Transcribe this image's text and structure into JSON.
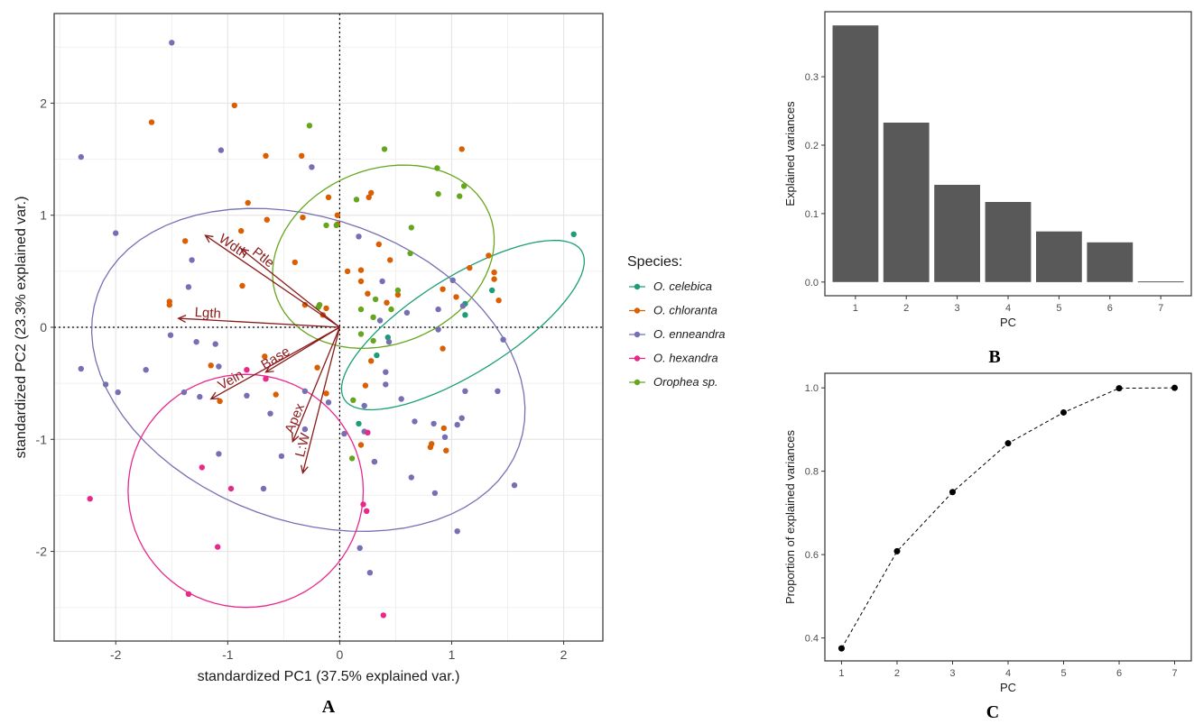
{
  "chart_data": [
    {
      "type": "scatter",
      "panel": "A",
      "xlabel": "standardized PC1 (37.5% explained var.)",
      "ylabel": "standardized PC2 (23.3% explained var.)",
      "xlim": [
        -2.55,
        2.35
      ],
      "ylim": [
        -2.8,
        2.8
      ],
      "xticks": [
        -2,
        -1,
        0,
        1,
        2
      ],
      "yticks": [
        -2,
        -1,
        0,
        1,
        2
      ],
      "grid": true,
      "legend_title": "Species:",
      "legend_position": "right",
      "series": [
        {
          "name": "O. celebica",
          "color": "#1b9e77",
          "points": [
            [
              2.09,
              0.83
            ],
            [
              1.36,
              0.33
            ],
            [
              1.12,
              0.21
            ],
            [
              1.12,
              0.11
            ],
            [
              0.33,
              -0.25
            ],
            [
              0.43,
              -0.09
            ],
            [
              0.17,
              -0.86
            ]
          ],
          "ellipse": {
            "cx": 1.1,
            "cy": 0.02,
            "rx": 1.25,
            "ry": 0.43,
            "angle_deg": 32
          }
        },
        {
          "name": "O. chloranta",
          "color": "#d95f02",
          "points": [
            [
              -1.68,
              1.83
            ],
            [
              -0.94,
              1.98
            ],
            [
              -0.34,
              1.53
            ],
            [
              -0.66,
              1.53
            ],
            [
              -0.1,
              1.16
            ],
            [
              0.26,
              1.16
            ],
            [
              1.09,
              1.59
            ],
            [
              -0.82,
              1.11
            ],
            [
              -0.33,
              0.98
            ],
            [
              -0.02,
              1.0
            ],
            [
              -0.02,
              0.92
            ],
            [
              -0.88,
              0.86
            ],
            [
              -0.65,
              0.96
            ],
            [
              -1.38,
              0.77
            ],
            [
              -0.4,
              0.58
            ],
            [
              0.35,
              0.74
            ],
            [
              0.45,
              0.6
            ],
            [
              0.19,
              0.51
            ],
            [
              0.07,
              0.5
            ],
            [
              1.38,
              0.49
            ],
            [
              0.19,
              0.41
            ],
            [
              1.38,
              0.43
            ],
            [
              1.33,
              0.64
            ],
            [
              1.04,
              0.27
            ],
            [
              0.92,
              0.34
            ],
            [
              0.25,
              0.3
            ],
            [
              0.52,
              0.29
            ],
            [
              0.42,
              0.22
            ],
            [
              1.42,
              0.24
            ],
            [
              -1.52,
              0.23
            ],
            [
              -0.87,
              0.37
            ],
            [
              -0.31,
              0.2
            ],
            [
              -0.15,
              0.11
            ],
            [
              -0.12,
              0.17
            ],
            [
              -0.67,
              -0.26
            ],
            [
              -0.2,
              -0.36
            ],
            [
              -1.15,
              -0.34
            ],
            [
              -0.12,
              -0.59
            ],
            [
              -1.07,
              -0.66
            ],
            [
              -0.57,
              -0.6
            ],
            [
              0.92,
              -0.19
            ],
            [
              0.23,
              -0.52
            ],
            [
              0.28,
              -0.3
            ],
            [
              0.81,
              -1.07
            ],
            [
              0.95,
              -1.1
            ],
            [
              0.93,
              -0.9
            ],
            [
              0.82,
              -1.04
            ],
            [
              0.19,
              -1.05
            ],
            [
              0.31,
              -1.2
            ],
            [
              -1.52,
              0.2
            ],
            [
              1.16,
              0.53
            ],
            [
              0.28,
              1.2
            ]
          ]
        },
        {
          "name": "O. enneandra",
          "color": "#7570b3",
          "points": [
            [
              -1.5,
              2.54
            ],
            [
              -2.31,
              1.52
            ],
            [
              -1.06,
              1.58
            ],
            [
              -0.25,
              1.43
            ],
            [
              -2.0,
              0.84
            ],
            [
              -1.32,
              0.6
            ],
            [
              -1.35,
              0.36
            ],
            [
              -1.51,
              -0.07
            ],
            [
              -1.28,
              -0.13
            ],
            [
              -1.11,
              -0.15
            ],
            [
              -2.31,
              -0.37
            ],
            [
              -1.73,
              -0.38
            ],
            [
              -1.08,
              -0.35
            ],
            [
              -2.09,
              -0.51
            ],
            [
              -1.98,
              -0.58
            ],
            [
              -1.39,
              -0.58
            ],
            [
              -1.25,
              -0.62
            ],
            [
              -0.83,
              -0.61
            ],
            [
              -0.62,
              -0.77
            ],
            [
              -0.31,
              -0.57
            ],
            [
              -0.1,
              -0.67
            ],
            [
              -0.31,
              -0.91
            ],
            [
              -1.08,
              -1.13
            ],
            [
              -0.68,
              -1.44
            ],
            [
              -0.52,
              -1.15
            ],
            [
              0.04,
              -0.95
            ],
            [
              0.22,
              -0.93
            ],
            [
              0.31,
              -1.2
            ],
            [
              0.18,
              -1.97
            ],
            [
              0.27,
              -2.19
            ],
            [
              0.55,
              -0.64
            ],
            [
              0.41,
              -0.51
            ],
            [
              0.22,
              -0.7
            ],
            [
              0.67,
              -0.84
            ],
            [
              0.84,
              -0.86
            ],
            [
              0.94,
              -0.98
            ],
            [
              1.05,
              -0.87
            ],
            [
              1.09,
              -0.81
            ],
            [
              1.12,
              -0.57
            ],
            [
              0.64,
              -1.34
            ],
            [
              0.85,
              -1.48
            ],
            [
              1.05,
              -1.82
            ],
            [
              1.41,
              -0.57
            ],
            [
              1.56,
              -1.41
            ],
            [
              1.46,
              -0.11
            ],
            [
              1.01,
              0.42
            ],
            [
              1.1,
              0.19
            ],
            [
              0.38,
              0.41
            ],
            [
              0.44,
              -0.13
            ],
            [
              0.36,
              0.06
            ],
            [
              0.17,
              0.81
            ],
            [
              0.88,
              0.16
            ],
            [
              0.88,
              -0.02
            ],
            [
              0.6,
              0.13
            ],
            [
              0.41,
              -0.4
            ]
          ],
          "ellipse": {
            "cx": -0.28,
            "cy": -0.38,
            "rx": 2.0,
            "ry": 1.35,
            "angle_deg": -20
          }
        },
        {
          "name": "O. hexandra",
          "color": "#e7298a",
          "points": [
            [
              -2.23,
              -1.53
            ],
            [
              -1.23,
              -1.25
            ],
            [
              -0.83,
              -0.38
            ],
            [
              -0.66,
              -0.46
            ],
            [
              -0.97,
              -1.44
            ],
            [
              -1.09,
              -1.96
            ],
            [
              -1.35,
              -2.38
            ],
            [
              0.21,
              -1.58
            ],
            [
              0.24,
              -1.64
            ],
            [
              0.39,
              -2.57
            ],
            [
              0.25,
              -0.94
            ]
          ],
          "ellipse": {
            "cx": -0.84,
            "cy": -1.46,
            "rx": 1.05,
            "ry": 1.04,
            "angle_deg": -5
          }
        },
        {
          "name": "Orophea sp.",
          "color": "#66a61e",
          "points": [
            [
              -0.27,
              1.8
            ],
            [
              0.4,
              1.59
            ],
            [
              0.87,
              1.42
            ],
            [
              1.11,
              1.26
            ],
            [
              0.88,
              1.19
            ],
            [
              1.07,
              1.17
            ],
            [
              0.15,
              1.14
            ],
            [
              -0.12,
              0.91
            ],
            [
              0.64,
              0.89
            ],
            [
              -0.03,
              0.91
            ],
            [
              0.63,
              0.66
            ],
            [
              -0.19,
              0.18
            ],
            [
              0.32,
              0.25
            ],
            [
              0.19,
              0.16
            ],
            [
              0.46,
              0.16
            ],
            [
              0.3,
              0.09
            ],
            [
              0.52,
              0.33
            ],
            [
              0.19,
              -0.06
            ],
            [
              0.3,
              -0.12
            ],
            [
              -0.18,
              0.2
            ],
            [
              0.11,
              -1.17
            ],
            [
              0.12,
              -0.65
            ]
          ],
          "ellipse": {
            "cx": 0.39,
            "cy": 0.63,
            "rx": 0.78,
            "ry": 1.02,
            "angle_deg": -68
          }
        }
      ],
      "loadings": [
        {
          "label": "Wdth",
          "x": -1.2,
          "y": 0.82
        },
        {
          "label": "Ptle",
          "x": -0.88,
          "y": 0.7
        },
        {
          "label": "Lgth",
          "x": -1.44,
          "y": 0.08
        },
        {
          "label": "Base",
          "x": -0.66,
          "y": -0.4
        },
        {
          "label": "Vein",
          "x": -1.15,
          "y": -0.64
        },
        {
          "label": "Apex",
          "x": -0.42,
          "y": -1.02
        },
        {
          "label": "L:W",
          "x": -0.33,
          "y": -1.3
        }
      ],
      "panel_label": "A"
    },
    {
      "type": "bar",
      "panel": "B",
      "categories": [
        "1",
        "2",
        "3",
        "4",
        "5",
        "6",
        "7"
      ],
      "values": [
        0.375,
        0.233,
        0.142,
        0.117,
        0.074,
        0.058,
        0.001
      ],
      "xlabel": "PC",
      "ylabel": "Explained variances",
      "yticks": [
        0.0,
        0.1,
        0.2,
        0.3
      ],
      "ylim": [
        -0.02,
        0.395
      ],
      "color": "#595959",
      "panel_label": "B"
    },
    {
      "type": "line",
      "panel": "C",
      "x": [
        1,
        2,
        3,
        4,
        5,
        6,
        7
      ],
      "values": [
        0.375,
        0.608,
        0.75,
        0.867,
        0.941,
        0.999,
        1.0
      ],
      "xlabel": "PC",
      "ylabel": "Proportion of explained variances",
      "yticks": [
        0.4,
        0.6,
        0.8,
        1.0
      ],
      "ylim": [
        0.345,
        1.035
      ],
      "panel_label": "C"
    }
  ]
}
